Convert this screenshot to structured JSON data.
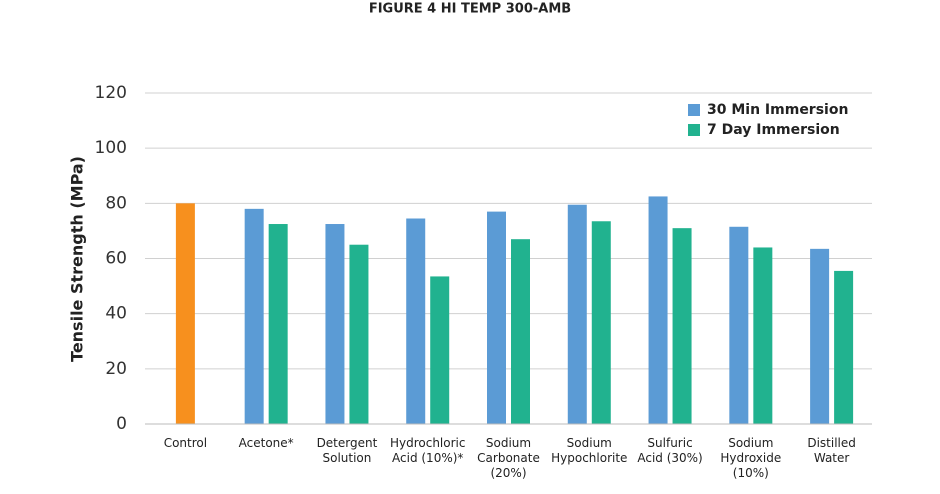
{
  "chart_data": {
    "type": "bar",
    "title": "FIGURE 4 HI TEMP 300-AMB",
    "y_label": "Tensile Strength (MPa)",
    "categories": [
      [
        "Control"
      ],
      [
        "Acetone*"
      ],
      [
        "Detergent",
        "Solution"
      ],
      [
        "Hydrochloric",
        "Acid (10%)*"
      ],
      [
        "Sodium",
        "Carbonate",
        "(20%)"
      ],
      [
        "Sodium",
        "Hypochlorite"
      ],
      [
        "Sulfuric",
        "Acid (30%)"
      ],
      [
        "Sodium",
        "Hydroxide",
        "(10%)"
      ],
      [
        "Distilled",
        "Water"
      ]
    ],
    "series": [
      {
        "name": "30 Min Immersion",
        "color": "#5b9bd5",
        "point_colors": [
          "#f7901e",
          "#5b9bd5",
          "#5b9bd5",
          "#5b9bd5",
          "#5b9bd5",
          "#5b9bd5",
          "#5b9bd5",
          "#5b9bd5",
          "#5b9bd5"
        ],
        "values": [
          80,
          78,
          72.5,
          74.5,
          77,
          79.5,
          82.5,
          71.5,
          63.5
        ]
      },
      {
        "name": "7 Day Immersion",
        "color": "#21b28f",
        "values": [
          null,
          72.5,
          65,
          53.5,
          67,
          73.5,
          71,
          64,
          55.5
        ]
      }
    ],
    "ylim": [
      0,
      120
    ],
    "yticks": [
      0,
      20,
      40,
      60,
      80,
      100,
      120
    ],
    "grid": true,
    "legend": "top-right"
  }
}
